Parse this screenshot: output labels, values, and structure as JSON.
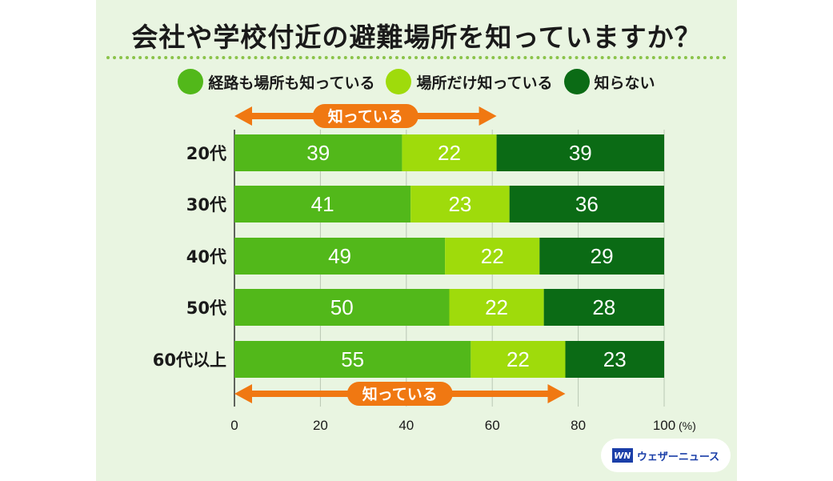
{
  "chart_data": {
    "type": "bar",
    "stacked": true,
    "orientation": "horizontal",
    "title": "会社や学校付近の避難場所を知っていますか？",
    "categories": [
      "20代",
      "30代",
      "40代",
      "50代",
      "60代以上"
    ],
    "series": [
      {
        "name": "経路も場所も知っている",
        "color": "#52b81a",
        "values": [
          39,
          41,
          49,
          50,
          55
        ]
      },
      {
        "name": "場所だけ知っている",
        "color": "#9fdb0b",
        "values": [
          22,
          23,
          22,
          22,
          22
        ]
      },
      {
        "name": "知らない",
        "color": "#0b6b15",
        "values": [
          39,
          36,
          29,
          28,
          23
        ]
      }
    ],
    "xlim": [
      0,
      100
    ],
    "xticks": [
      "0",
      "20",
      "40",
      "60",
      "80",
      "100"
    ],
    "xunit": "(%)",
    "arrows": [
      {
        "label": "知っている",
        "extent": 61
      },
      {
        "label": "知っている",
        "extent": 77
      }
    ]
  },
  "logo": {
    "mark": "WN",
    "text": "ウェザーニュース"
  }
}
